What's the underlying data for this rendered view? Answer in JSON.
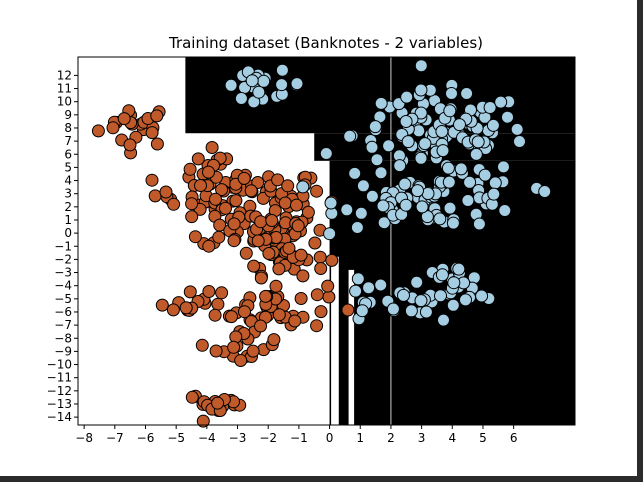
{
  "chart_data": {
    "type": "scatter",
    "title": "Training dataset (Banknotes - 2 variables)",
    "xlabel": "",
    "ylabel": "",
    "xlim": [
      -8.2,
      8.0
    ],
    "ylim": [
      -14.6,
      13.4
    ],
    "x_ticks": [
      -8,
      -7,
      -6,
      -5,
      -4,
      -3,
      -2,
      -1,
      0,
      1,
      2,
      3,
      4,
      5,
      6
    ],
    "y_ticks": [
      12,
      11,
      10,
      9,
      8,
      7,
      6,
      5,
      4,
      3,
      2,
      1,
      0,
      -1,
      -2,
      -3,
      -4,
      -5,
      -6,
      -7,
      -8,
      -9,
      -10,
      -11,
      -12,
      -13,
      -14
    ],
    "grid": false,
    "legend": "none",
    "background": "black/white decision regions of a classifier",
    "decision_regions_black": [
      {
        "x": [
          -4.7,
          8.0
        ],
        "y": [
          7.6,
          13.4
        ]
      },
      {
        "x": [
          -0.5,
          8.0
        ],
        "y": [
          5.5,
          7.6
        ]
      },
      {
        "x": [
          0.0,
          8.0
        ],
        "y": [
          -14.6,
          5.5
        ]
      }
    ],
    "decision_regions_white_strips": [
      {
        "x": [
          0.05,
          0.3
        ],
        "y": [
          -14.6,
          -1.8
        ]
      },
      {
        "x": [
          0.62,
          0.8
        ],
        "y": [
          -14.6,
          -2.8
        ]
      }
    ],
    "boundary_line_x": 2.0,
    "colors": {
      "class_0": "#c15a2a",
      "class_1": "#a6cee3",
      "marker_edge": "#000000",
      "region_dark": "#000000",
      "region_light": "#ffffff",
      "boundary_line": "#cccccc"
    },
    "series": [
      {
        "class": 0,
        "color": "#c15a2a",
        "clusters": [
          {
            "center": [
              -6.3,
              8.2
            ],
            "spread": [
              0.6,
              0.8
            ],
            "n": 22
          },
          {
            "center": [
              -3.7,
              5.3
            ],
            "spread": [
              0.35,
              0.6
            ],
            "n": 8
          },
          {
            "center": [
              -2.9,
              2.9
            ],
            "spread": [
              1.4,
              0.9
            ],
            "n": 75
          },
          {
            "center": [
              -2.2,
              0.4
            ],
            "spread": [
              1.0,
              0.8
            ],
            "n": 55
          },
          {
            "center": [
              -1.5,
              -1.8
            ],
            "spread": [
              0.7,
              0.7
            ],
            "n": 30
          },
          {
            "center": [
              -4.5,
              -5.6
            ],
            "spread": [
              0.7,
              0.5
            ],
            "n": 14
          },
          {
            "center": [
              -1.9,
              -5.6
            ],
            "spread": [
              0.9,
              0.9
            ],
            "n": 40
          },
          {
            "center": [
              -2.7,
              -8.7
            ],
            "spread": [
              0.5,
              0.7
            ],
            "n": 18
          },
          {
            "center": [
              -3.6,
              -13.0
            ],
            "spread": [
              0.5,
              0.4
            ],
            "n": 20
          }
        ]
      },
      {
        "class": 1,
        "color": "#a6cee3",
        "clusters": [
          {
            "center": [
              -2.2,
              11.3
            ],
            "spread": [
              0.7,
              0.5
            ],
            "n": 20
          },
          {
            "center": [
              3.6,
              7.5
            ],
            "spread": [
              1.4,
              1.6
            ],
            "n": 120
          },
          {
            "center": [
              3.4,
              2.5
            ],
            "spread": [
              1.5,
              1.0
            ],
            "n": 80
          },
          {
            "center": [
              4.0,
              -3.8
            ],
            "spread": [
              0.5,
              0.7
            ],
            "n": 30
          },
          {
            "center": [
              1.8,
              -5.5
            ],
            "spread": [
              1.0,
              0.9
            ],
            "n": 22
          }
        ]
      }
    ]
  }
}
